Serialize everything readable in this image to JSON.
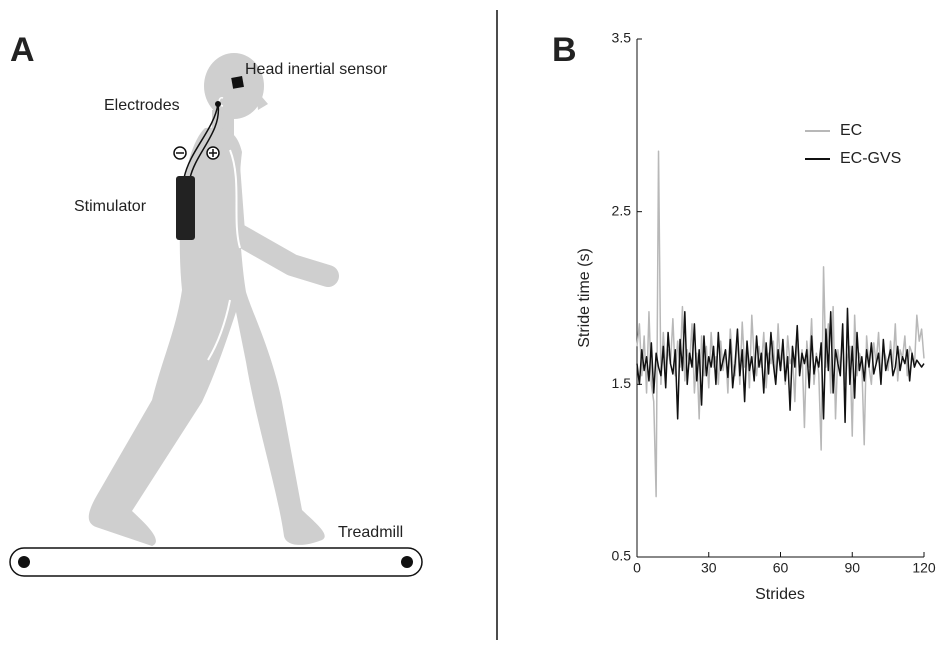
{
  "panel_a": {
    "label": "A",
    "sensor_label": "Head inertial sensor",
    "electrodes_label": "Electrodes",
    "stimulator_label": "Stimulator",
    "treadmill_label": "Treadmill"
  },
  "chart_data": {
    "type": "line",
    "panel_label": "B",
    "xlabel": "Strides",
    "ylabel": "Stride time (s)",
    "x": [
      0,
      1,
      2,
      3,
      4,
      5,
      6,
      7,
      8,
      9,
      10,
      11,
      12,
      13,
      14,
      15,
      16,
      17,
      18,
      19,
      20,
      21,
      22,
      23,
      24,
      25,
      26,
      27,
      28,
      29,
      30,
      31,
      32,
      33,
      34,
      35,
      36,
      37,
      38,
      39,
      40,
      41,
      42,
      43,
      44,
      45,
      46,
      47,
      48,
      49,
      50,
      51,
      52,
      53,
      54,
      55,
      56,
      57,
      58,
      59,
      60,
      61,
      62,
      63,
      64,
      65,
      66,
      67,
      68,
      69,
      70,
      71,
      72,
      73,
      74,
      75,
      76,
      77,
      78,
      79,
      80,
      81,
      82,
      83,
      84,
      85,
      86,
      87,
      88,
      89,
      90,
      91,
      92,
      93,
      94,
      95,
      96,
      97,
      98,
      99,
      100,
      101,
      102,
      103,
      104,
      105,
      106,
      107,
      108,
      109,
      110,
      111,
      112,
      113,
      114,
      115,
      116,
      117,
      118,
      119,
      120
    ],
    "series": [
      {
        "name": "EC",
        "color": "#b8b8b8",
        "values": [
          1.72,
          1.85,
          1.55,
          1.78,
          1.45,
          1.92,
          1.5,
          1.4,
          0.85,
          2.85,
          1.5,
          1.8,
          1.58,
          1.7,
          1.62,
          1.88,
          1.55,
          1.75,
          1.6,
          1.95,
          1.52,
          1.7,
          1.62,
          1.85,
          1.45,
          1.68,
          1.3,
          1.78,
          1.55,
          1.72,
          1.48,
          1.8,
          1.6,
          1.66,
          1.5,
          1.75,
          1.58,
          1.7,
          1.45,
          1.82,
          1.62,
          1.55,
          1.78,
          1.5,
          1.86,
          1.6,
          1.74,
          1.48,
          1.9,
          1.65,
          1.55,
          1.72,
          1.6,
          1.8,
          1.48,
          1.68,
          1.62,
          1.75,
          1.52,
          1.85,
          1.58,
          1.7,
          1.5,
          1.78,
          1.62,
          1.66,
          1.4,
          1.82,
          1.55,
          1.7,
          1.25,
          1.75,
          1.6,
          1.88,
          1.5,
          1.68,
          1.56,
          1.12,
          2.18,
          1.6,
          1.85,
          1.45,
          1.95,
          1.3,
          1.7,
          1.58,
          1.8,
          1.5,
          1.65,
          1.72,
          1.2,
          1.9,
          1.55,
          1.68,
          1.62,
          1.15,
          1.78,
          1.6,
          1.5,
          1.74,
          1.62,
          1.8,
          1.55,
          1.7,
          1.66,
          1.58,
          1.75,
          1.6,
          1.85,
          1.52,
          1.7,
          1.65,
          1.78,
          1.55,
          1.72,
          1.68,
          1.6,
          1.9,
          1.75,
          1.82,
          1.65
        ]
      },
      {
        "name": "EC-GVS",
        "color": "#111111",
        "values": [
          1.62,
          1.5,
          1.7,
          1.58,
          1.66,
          1.52,
          1.74,
          1.45,
          1.68,
          1.6,
          1.55,
          1.72,
          1.48,
          1.8,
          1.62,
          1.56,
          1.7,
          1.3,
          1.76,
          1.58,
          1.92,
          1.5,
          1.68,
          1.6,
          1.85,
          1.52,
          1.7,
          1.38,
          1.78,
          1.55,
          1.66,
          1.6,
          1.72,
          1.5,
          1.8,
          1.58,
          1.64,
          1.7,
          1.54,
          1.76,
          1.48,
          1.62,
          1.82,
          1.55,
          1.7,
          1.4,
          1.75,
          1.58,
          1.66,
          1.52,
          1.78,
          1.6,
          1.68,
          1.45,
          1.74,
          1.56,
          1.8,
          1.62,
          1.5,
          1.7,
          1.58,
          1.76,
          1.52,
          1.66,
          1.35,
          1.72,
          1.6,
          1.84,
          1.55,
          1.68,
          1.62,
          1.7,
          1.48,
          1.78,
          1.56,
          1.66,
          1.6,
          1.74,
          1.3,
          1.82,
          1.58,
          1.92,
          1.45,
          1.7,
          1.62,
          1.55,
          1.85,
          1.28,
          1.94,
          1.5,
          1.72,
          1.42,
          1.8,
          1.58,
          1.66,
          1.52,
          1.7,
          1.6,
          1.74,
          1.56,
          1.62,
          1.68,
          1.5,
          1.76,
          1.58,
          1.64,
          1.7,
          1.55,
          1.6,
          1.72,
          1.58,
          1.66,
          1.62,
          1.7,
          1.52,
          1.68,
          1.6,
          1.64,
          1.62,
          1.6,
          1.62
        ]
      }
    ],
    "xlim": [
      0,
      120
    ],
    "xticks": [
      0,
      30,
      60,
      90,
      120
    ],
    "ylim": [
      0.5,
      3.5
    ],
    "yticks": [
      0.5,
      1.5,
      2.5,
      3.5
    ],
    "grid": false,
    "legend": "upper right"
  }
}
